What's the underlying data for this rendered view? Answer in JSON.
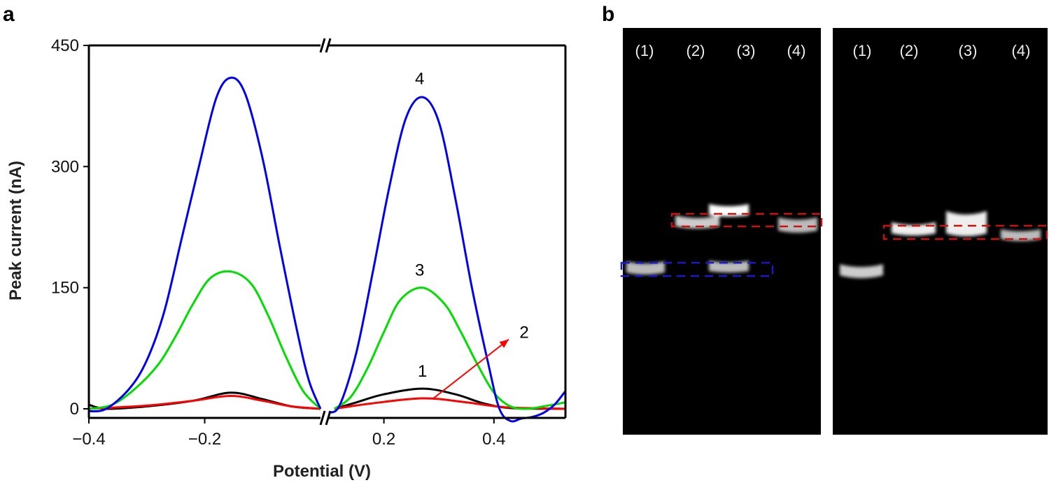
{
  "panels": {
    "a": "a",
    "b": "b"
  },
  "chart_data": {
    "type": "line",
    "xlabel": "Potential (V)",
    "ylabel": "Peak current (nA)",
    "ylim": [
      0,
      450
    ],
    "xlim": [
      -0.4,
      0.53
    ],
    "x_axis_break": [
      0.0,
      0.1
    ],
    "x_ticks": [
      -0.4,
      -0.2,
      0.2,
      0.4
    ],
    "x_tick_labels": [
      "−0.4",
      "−0.2",
      "0.2",
      "0.4"
    ],
    "y_ticks": [
      0,
      150,
      300,
      450
    ],
    "y_tick_labels": [
      "0",
      "150",
      "300",
      "450"
    ],
    "grid": false,
    "series": [
      {
        "id": "1",
        "color": "#000000",
        "segments": [
          {
            "x": [
              -0.4,
              -0.37,
              -0.3,
              -0.22,
              -0.155,
              -0.1,
              -0.05,
              0.0
            ],
            "y": [
              5,
              0,
              3,
              10,
              20,
              12,
              3,
              0
            ]
          },
          {
            "x": [
              0.11,
              0.15,
              0.2,
              0.27,
              0.33,
              0.38,
              0.43,
              0.53
            ],
            "y": [
              0,
              8,
              18,
              25,
              18,
              7,
              1,
              0
            ]
          }
        ]
      },
      {
        "id": "2",
        "color": "#ff0000",
        "segments": [
          {
            "x": [
              -0.4,
              -0.3,
              -0.22,
              -0.155,
              -0.1,
              -0.05,
              0.0
            ],
            "y": [
              0,
              4,
              10,
              16,
              10,
              3,
              0
            ]
          },
          {
            "x": [
              0.11,
              0.17,
              0.27,
              0.35,
              0.42,
              0.53
            ],
            "y": [
              0,
              6,
              13,
              8,
              2,
              0
            ]
          }
        ]
      },
      {
        "id": "3",
        "color": "#00dd00",
        "segments": [
          {
            "x": [
              -0.4,
              -0.36,
              -0.32,
              -0.28,
              -0.25,
              -0.22,
              -0.19,
              -0.155,
              -0.12,
              -0.09,
              -0.06,
              -0.03,
              0.0
            ],
            "y": [
              0,
              5,
              25,
              55,
              90,
              130,
              162,
              170,
              155,
              115,
              65,
              22,
              0
            ]
          },
          {
            "x": [
              0.11,
              0.14,
              0.17,
              0.2,
              0.23,
              0.27,
              0.31,
              0.34,
              0.37,
              0.4,
              0.43,
              0.46,
              0.49,
              0.53
            ],
            "y": [
              0,
              15,
              50,
              95,
              135,
              150,
              130,
              95,
              55,
              20,
              3,
              0,
              3,
              8
            ]
          }
        ]
      },
      {
        "id": "4",
        "color": "#0000ee",
        "segments": [
          {
            "x": [
              -0.4,
              -0.37,
              -0.33,
              -0.3,
              -0.27,
              -0.24,
              -0.21,
              -0.18,
              -0.155,
              -0.13,
              -0.1,
              -0.07,
              -0.04,
              -0.02,
              0.0
            ],
            "y": [
              -3,
              0,
              25,
              60,
              120,
              210,
              300,
              385,
              410,
              390,
              310,
              200,
              95,
              35,
              0
            ]
          },
          {
            "x": [
              0.1,
              0.12,
              0.15,
              0.18,
              0.21,
              0.24,
              0.27,
              0.3,
              0.33,
              0.36,
              0.39,
              0.41,
              0.43,
              0.45,
              0.47,
              0.49,
              0.51,
              0.53
            ],
            "y": [
              -5,
              5,
              70,
              170,
              275,
              360,
              386,
              355,
              260,
              150,
              55,
              0,
              -15,
              -12,
              -10,
              -5,
              5,
              22
            ]
          }
        ]
      }
    ],
    "annotations": [
      {
        "text": "1",
        "x": 0.27,
        "y": 40
      },
      {
        "text": "2",
        "x": 0.455,
        "y": 88
      },
      {
        "text": "3",
        "x": 0.265,
        "y": 165
      },
      {
        "text": "4",
        "x": 0.265,
        "y": 402
      }
    ],
    "arrow": {
      "from": [
        0.29,
        13
      ],
      "to": [
        0.427,
        86
      ],
      "color": "#ff0000"
    }
  },
  "gel": {
    "left_lanes": [
      "(1)",
      "(2)",
      "(3)",
      "(4)"
    ],
    "right_lanes": [
      "(1)",
      "(2)",
      "(3)",
      "(4)"
    ],
    "box_colors": {
      "red": "#cc1111",
      "blue": "#1a1acc"
    }
  }
}
